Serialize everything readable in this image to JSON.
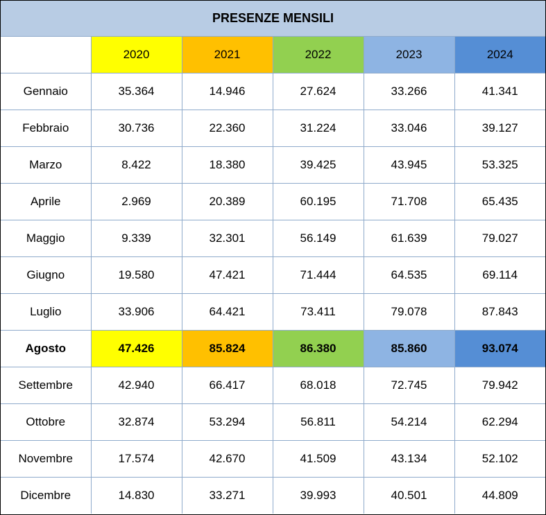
{
  "title": "PRESENZE MENSILI",
  "colors": {
    "title_bg": "#b8cce4",
    "years": [
      "#ffff00",
      "#ffc000",
      "#92d050",
      "#8eb4e3",
      "#558ed5"
    ]
  },
  "years": [
    "2020",
    "2021",
    "2022",
    "2023",
    "2024"
  ],
  "highlight_month": "Agosto",
  "rows": [
    {
      "month": "Gennaio",
      "values": [
        "35.364",
        "14.946",
        "27.624",
        "33.266",
        "41.341"
      ]
    },
    {
      "month": "Febbraio",
      "values": [
        "30.736",
        "22.360",
        "31.224",
        "33.046",
        "39.127"
      ]
    },
    {
      "month": "Marzo",
      "values": [
        "8.422",
        "18.380",
        "39.425",
        "43.945",
        "53.325"
      ]
    },
    {
      "month": "Aprile",
      "values": [
        "2.969",
        "20.389",
        "60.195",
        "71.708",
        "65.435"
      ]
    },
    {
      "month": "Maggio",
      "values": [
        "9.339",
        "32.301",
        "56.149",
        "61.639",
        "79.027"
      ]
    },
    {
      "month": "Giugno",
      "values": [
        "19.580",
        "47.421",
        "71.444",
        "64.535",
        "69.114"
      ]
    },
    {
      "month": "Luglio",
      "values": [
        "33.906",
        "64.421",
        "73.411",
        "79.078",
        "87.843"
      ]
    },
    {
      "month": "Agosto",
      "values": [
        "47.426",
        "85.824",
        "86.380",
        "85.860",
        "93.074"
      ]
    },
    {
      "month": "Settembre",
      "values": [
        "42.940",
        "66.417",
        "68.018",
        "72.745",
        "79.942"
      ]
    },
    {
      "month": "Ottobre",
      "values": [
        "32.874",
        "53.294",
        "56.811",
        "54.214",
        "62.294"
      ]
    },
    {
      "month": "Novembre",
      "values": [
        "17.574",
        "42.670",
        "41.509",
        "43.134",
        "52.102"
      ]
    },
    {
      "month": "Dicembre",
      "values": [
        "14.830",
        "33.271",
        "39.993",
        "40.501",
        "44.809"
      ]
    }
  ]
}
